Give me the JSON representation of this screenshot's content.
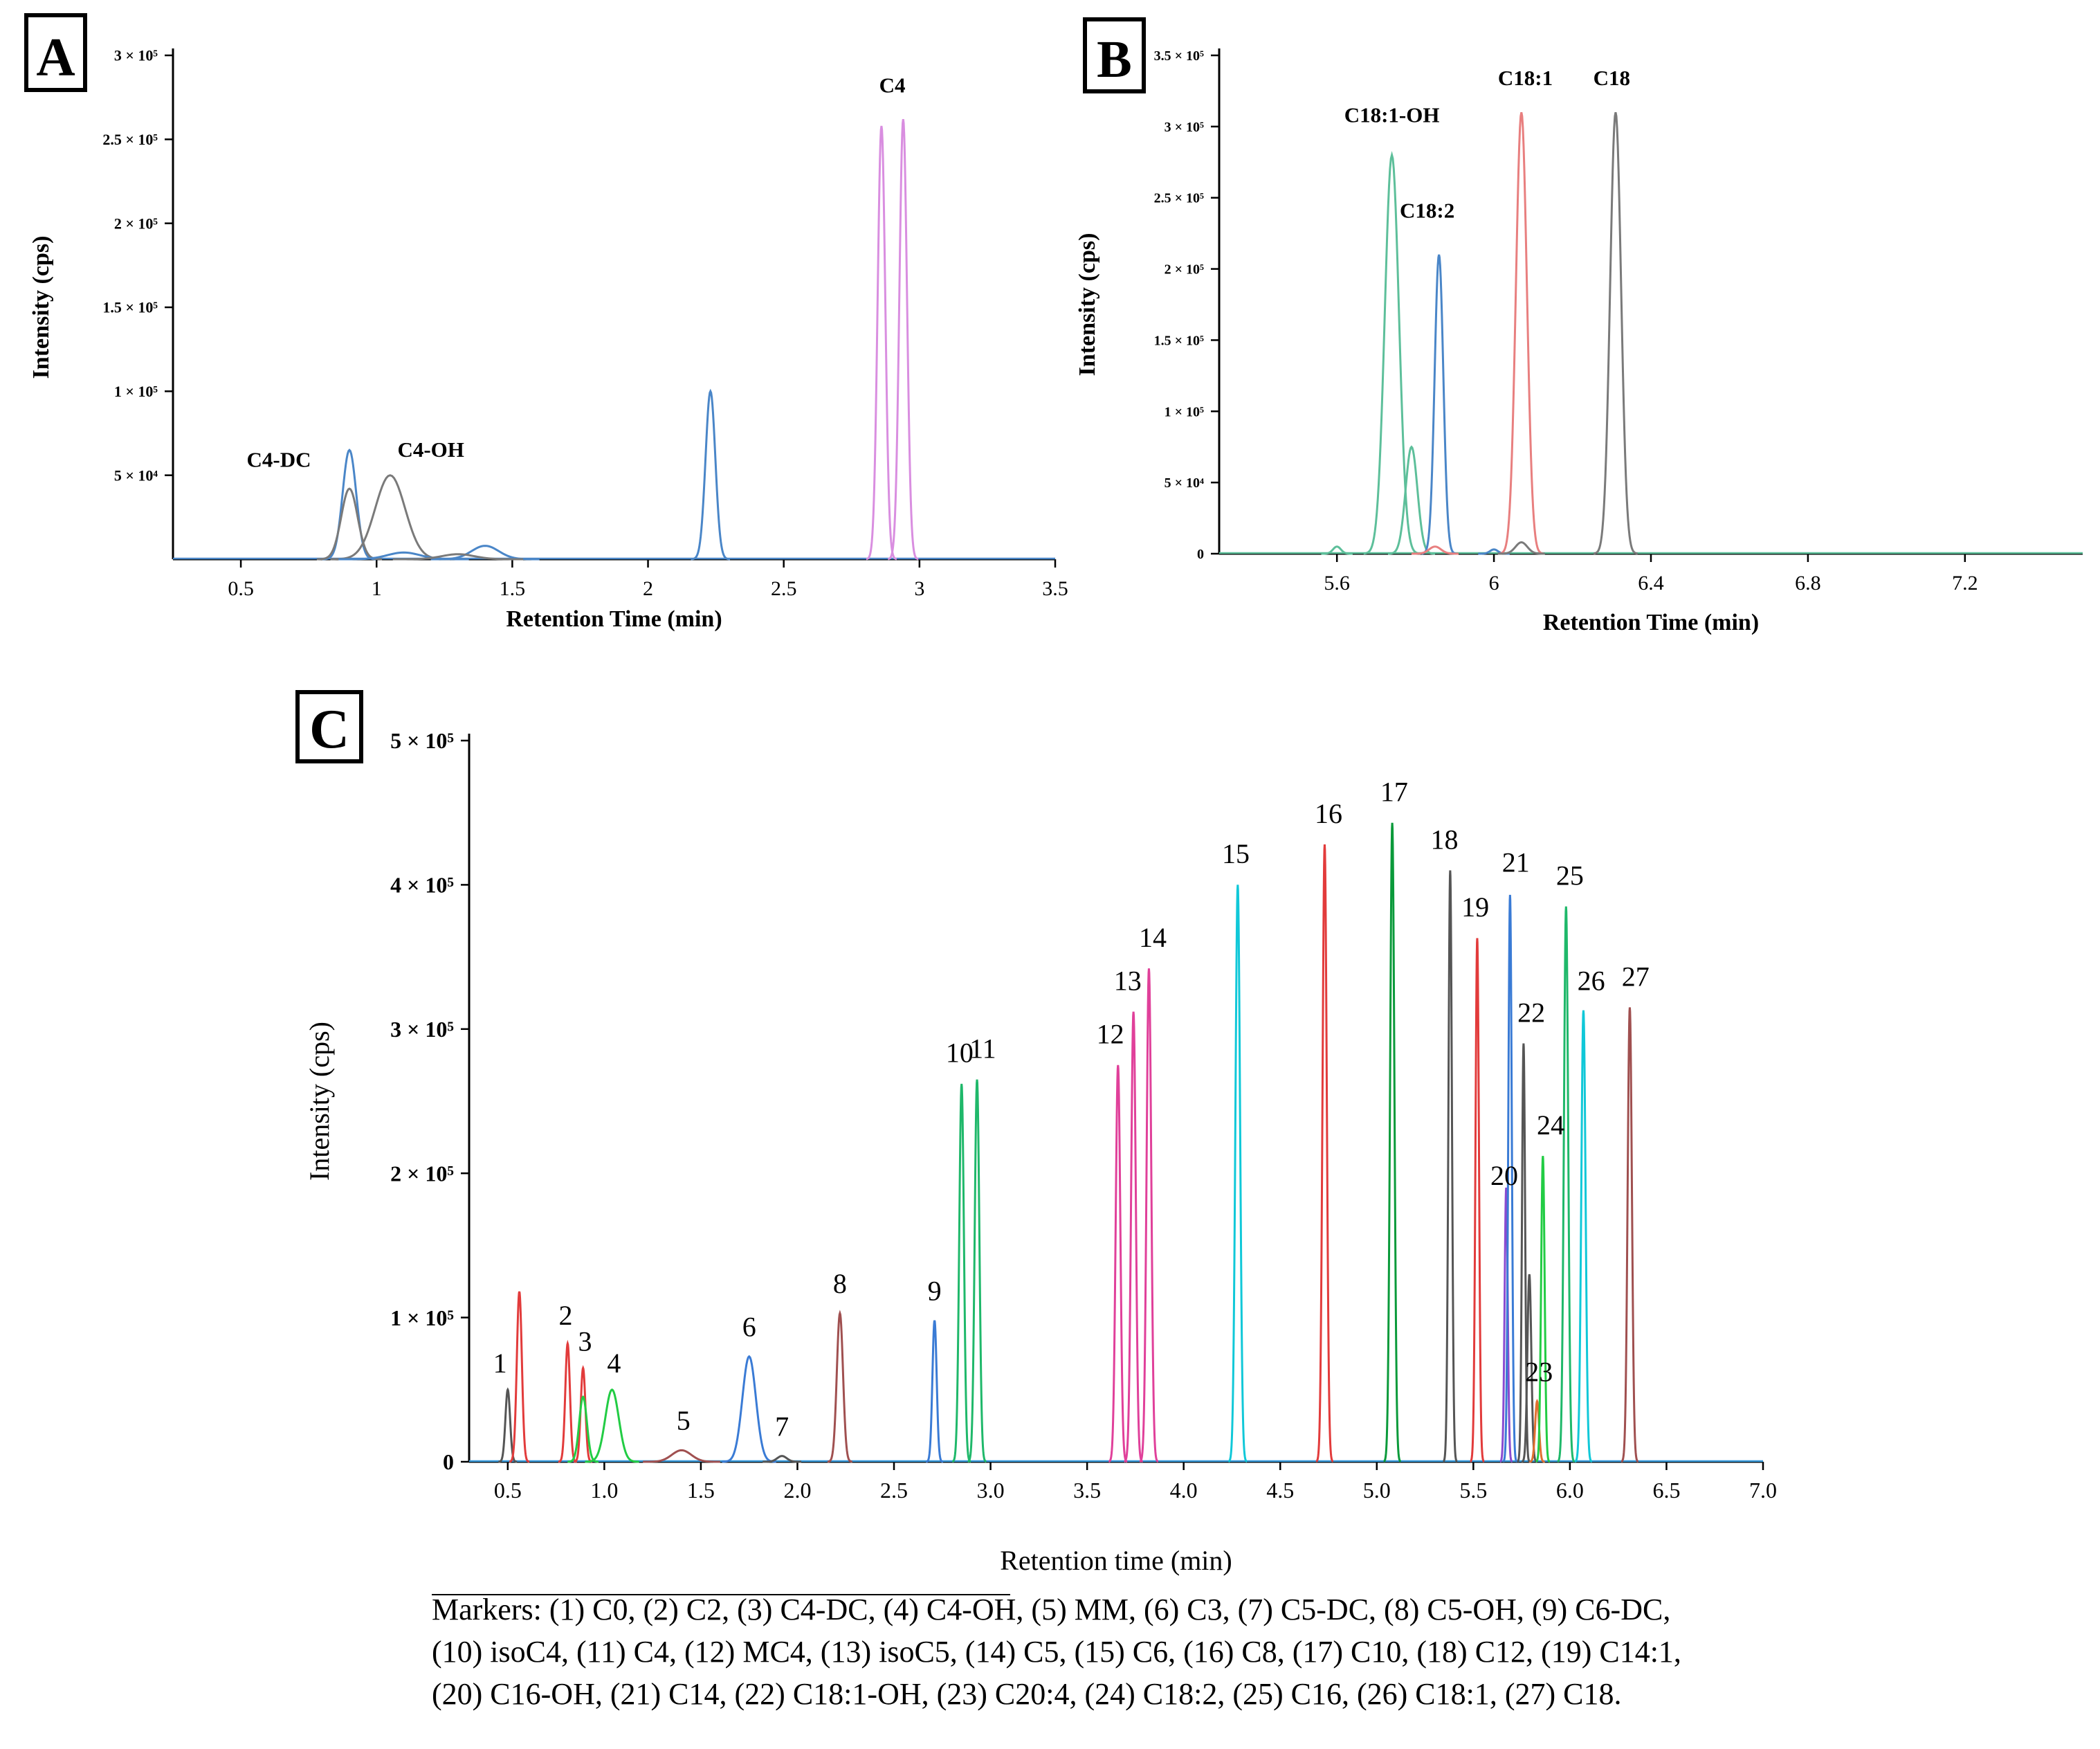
{
  "chart_data": [
    {
      "id": "A",
      "panel_label": "A",
      "type": "line",
      "title": "",
      "xlabel": "Retention Time (min)",
      "ylabel": "Intensity (cps)",
      "xlim": [
        0.25,
        3.5
      ],
      "ylim": [
        0,
        300000
      ],
      "xticks": [
        0.5,
        1,
        1.5,
        2,
        2.5,
        3,
        3.5
      ],
      "xtick_labels": [
        "0.5",
        "1",
        "1.5",
        "2",
        "2.5",
        "3",
        "3.5"
      ],
      "yticks": [
        50000,
        100000,
        150000,
        200000,
        250000,
        300000
      ],
      "ytick_labels": [
        "5 × 10⁴",
        "1 × 10⁵",
        "1.5 × 10⁵",
        "2 × 10⁵",
        "2.5 × 10⁵",
        "3 × 10⁵"
      ],
      "baseline": 0,
      "peaks": [
        {
          "color": "#4a86c8",
          "x": 0.9,
          "y": 65000,
          "w": 0.025
        },
        {
          "color": "#7a7a7a",
          "x": 0.9,
          "y": 42000,
          "w": 0.03
        },
        {
          "color": "#7a7a7a",
          "x": 1.05,
          "y": 50000,
          "w": 0.055
        },
        {
          "color": "#4a86c8",
          "x": 1.1,
          "y": 4000,
          "w": 0.06
        },
        {
          "color": "#4a86c8",
          "x": 1.4,
          "y": 8000,
          "w": 0.05
        },
        {
          "color": "#7a7a7a",
          "x": 1.3,
          "y": 3000,
          "w": 0.06
        },
        {
          "color": "#4a86c8",
          "x": 2.23,
          "y": 100000,
          "w": 0.018
        },
        {
          "color": "#d98ee0",
          "x": 2.86,
          "y": 258000,
          "w": 0.014
        },
        {
          "color": "#d98ee0",
          "x": 2.94,
          "y": 262000,
          "w": 0.014
        }
      ],
      "annotations": [
        {
          "text": "C4-DC",
          "x": 0.64,
          "y": 55000
        },
        {
          "text": "C4-OH",
          "x": 1.2,
          "y": 61000
        },
        {
          "text": "C4",
          "x": 2.9,
          "y": 278000
        }
      ]
    },
    {
      "id": "B",
      "panel_label": "B",
      "type": "line",
      "title": "",
      "xlabel": "Retention Time (min)",
      "ylabel": "Intensity (cps)",
      "xlim": [
        5.3,
        7.5
      ],
      "ylim": [
        0,
        350000
      ],
      "xticks": [
        5.6,
        6,
        6.4,
        6.8,
        7.2
      ],
      "xtick_labels": [
        "5.6",
        "6",
        "6.4",
        "6.8",
        "7.2"
      ],
      "yticks": [
        0,
        50000,
        100000,
        150000,
        200000,
        250000,
        300000,
        350000
      ],
      "ytick_labels": [
        "0",
        "5 × 10⁴",
        "1 × 10⁵",
        "1.5 × 10⁵",
        "2 × 10⁵",
        "2.5 × 10⁵",
        "3 × 10⁵",
        "3.5 × 10⁵"
      ],
      "baseline": 0,
      "peaks": [
        {
          "color": "#5dbf9a",
          "x": 5.74,
          "y": 280000,
          "w": 0.018
        },
        {
          "color": "#5dbf9a",
          "x": 5.79,
          "y": 75000,
          "w": 0.015
        },
        {
          "color": "#5dbf9a",
          "x": 5.6,
          "y": 5000,
          "w": 0.01
        },
        {
          "color": "#4a86c8",
          "x": 5.86,
          "y": 210000,
          "w": 0.011
        },
        {
          "color": "#4a86c8",
          "x": 6.0,
          "y": 3000,
          "w": 0.01
        },
        {
          "color": "#e87f7f",
          "x": 5.85,
          "y": 5000,
          "w": 0.015
        },
        {
          "color": "#e87f7f",
          "x": 6.07,
          "y": 310000,
          "w": 0.014
        },
        {
          "color": "#7a7a7a",
          "x": 6.07,
          "y": 8000,
          "w": 0.015
        },
        {
          "color": "#7a7a7a",
          "x": 6.31,
          "y": 310000,
          "w": 0.014
        }
      ],
      "annotations": [
        {
          "text": "C18:1-OH",
          "x": 5.74,
          "y": 303000
        },
        {
          "text": "C18:2",
          "x": 5.83,
          "y": 236000
        },
        {
          "text": "C18:1",
          "x": 6.08,
          "y": 329000
        },
        {
          "text": "C18",
          "x": 6.3,
          "y": 329000
        }
      ]
    },
    {
      "id": "C",
      "panel_label": "C",
      "type": "line",
      "title": "",
      "xlabel": "Retention time (min)",
      "ylabel": "Intensity (cps)",
      "xlim": [
        0.3,
        7.0
      ],
      "ylim": [
        0,
        500000
      ],
      "xticks": [
        0.5,
        1.0,
        1.5,
        2.0,
        2.5,
        3.0,
        3.5,
        4.0,
        4.5,
        5.0,
        5.5,
        6.0,
        6.5,
        7.0
      ],
      "xtick_labels": [
        "0.5",
        "1.0",
        "1.5",
        "2.0",
        "2.5",
        "3.0",
        "3.5",
        "4.0",
        "4.5",
        "5.0",
        "5.5",
        "6.0",
        "6.5",
        "7.0"
      ],
      "yticks": [
        0,
        100000,
        200000,
        300000,
        400000,
        500000
      ],
      "ytick_labels": [
        "0",
        "1 × 10⁵",
        "2 × 10⁵",
        "3 × 10⁵",
        "4 × 10⁵",
        "5 × 10⁵"
      ],
      "baseline": 0,
      "peaks": [
        {
          "color": "#555555",
          "x": 0.5,
          "y": 50000,
          "w": 0.012
        },
        {
          "color": "#e23b3b",
          "x": 0.56,
          "y": 118000,
          "w": 0.013
        },
        {
          "color": "#e23b3b",
          "x": 0.81,
          "y": 82000,
          "w": 0.012
        },
        {
          "color": "#e23b3b",
          "x": 0.89,
          "y": 65000,
          "w": 0.012
        },
        {
          "color": "#22cc44",
          "x": 0.89,
          "y": 45000,
          "w": 0.02
        },
        {
          "color": "#22cc44",
          "x": 1.04,
          "y": 50000,
          "w": 0.035
        },
        {
          "color": "#a05050",
          "x": 1.4,
          "y": 8000,
          "w": 0.05
        },
        {
          "color": "#3a7bd5",
          "x": 1.75,
          "y": 73000,
          "w": 0.035
        },
        {
          "color": "#555555",
          "x": 1.92,
          "y": 4000,
          "w": 0.025
        },
        {
          "color": "#a05050",
          "x": 2.22,
          "y": 103000,
          "w": 0.016
        },
        {
          "color": "#3a7bd5",
          "x": 2.71,
          "y": 98000,
          "w": 0.011
        },
        {
          "color": "#1fb86a",
          "x": 2.85,
          "y": 262000,
          "w": 0.012
        },
        {
          "color": "#1fb86a",
          "x": 2.93,
          "y": 265000,
          "w": 0.012
        },
        {
          "color": "#e0409a",
          "x": 3.66,
          "y": 275000,
          "w": 0.012
        },
        {
          "color": "#e0409a",
          "x": 3.74,
          "y": 312000,
          "w": 0.012
        },
        {
          "color": "#e0409a",
          "x": 3.82,
          "y": 342000,
          "w": 0.012
        },
        {
          "color": "#10c8d8",
          "x": 4.28,
          "y": 400000,
          "w": 0.012
        },
        {
          "color": "#e23b3b",
          "x": 4.73,
          "y": 428000,
          "w": 0.011
        },
        {
          "color": "#0a9a3a",
          "x": 5.08,
          "y": 443000,
          "w": 0.011
        },
        {
          "color": "#555555",
          "x": 5.38,
          "y": 410000,
          "w": 0.009
        },
        {
          "color": "#e23b3b",
          "x": 5.52,
          "y": 363000,
          "w": 0.009
        },
        {
          "color": "#8a4bd0",
          "x": 5.67,
          "y": 190000,
          "w": 0.008
        },
        {
          "color": "#3a7bd5",
          "x": 5.69,
          "y": 393000,
          "w": 0.009
        },
        {
          "color": "#555555",
          "x": 5.76,
          "y": 290000,
          "w": 0.008
        },
        {
          "color": "#555555",
          "x": 5.79,
          "y": 130000,
          "w": 0.01
        },
        {
          "color": "#e07030",
          "x": 5.83,
          "y": 42000,
          "w": 0.01
        },
        {
          "color": "#22cc44",
          "x": 5.86,
          "y": 212000,
          "w": 0.009
        },
        {
          "color": "#1fb86a",
          "x": 5.98,
          "y": 385000,
          "w": 0.011
        },
        {
          "color": "#10c8d8",
          "x": 6.07,
          "y": 313000,
          "w": 0.011
        },
        {
          "color": "#a05050",
          "x": 6.31,
          "y": 315000,
          "w": 0.011
        }
      ],
      "annotations": [
        {
          "text": "1",
          "x": 0.46,
          "y": 62000
        },
        {
          "text": "2",
          "x": 0.8,
          "y": 95000
        },
        {
          "text": "3",
          "x": 0.9,
          "y": 77000
        },
        {
          "text": "4",
          "x": 1.05,
          "y": 62000
        },
        {
          "text": "5",
          "x": 1.41,
          "y": 22000
        },
        {
          "text": "6",
          "x": 1.75,
          "y": 87000
        },
        {
          "text": "7",
          "x": 1.92,
          "y": 18000
        },
        {
          "text": "8",
          "x": 2.22,
          "y": 117000
        },
        {
          "text": "9",
          "x": 2.71,
          "y": 112000
        },
        {
          "text": "10",
          "x": 2.84,
          "y": 277000
        },
        {
          "text": "11",
          "x": 2.96,
          "y": 280000
        },
        {
          "text": "12",
          "x": 3.62,
          "y": 290000
        },
        {
          "text": "13",
          "x": 3.71,
          "y": 327000
        },
        {
          "text": "14",
          "x": 3.84,
          "y": 357000
        },
        {
          "text": "15",
          "x": 4.27,
          "y": 415000
        },
        {
          "text": "16",
          "x": 4.75,
          "y": 443000
        },
        {
          "text": "17",
          "x": 5.09,
          "y": 458000
        },
        {
          "text": "18",
          "x": 5.35,
          "y": 425000
        },
        {
          "text": "19",
          "x": 5.51,
          "y": 378000
        },
        {
          "text": "20",
          "x": 5.66,
          "y": 192000
        },
        {
          "text": "21",
          "x": 5.72,
          "y": 409000
        },
        {
          "text": "22",
          "x": 5.8,
          "y": 305000
        },
        {
          "text": "23",
          "x": 5.84,
          "y": 56000
        },
        {
          "text": "24",
          "x": 5.9,
          "y": 227000
        },
        {
          "text": "25",
          "x": 6.0,
          "y": 400000
        },
        {
          "text": "26",
          "x": 6.11,
          "y": 327000
        },
        {
          "text": "27",
          "x": 6.34,
          "y": 330000
        }
      ]
    }
  ],
  "legend": {
    "lines": [
      "Markers: (1) C0, (2) C2, (3) C4-DC, (4) C4-OH, (5) MM, (6) C3, (7) C5-DC, (8) C5-OH, (9) C6-DC,",
      "(10) isoC4, (11) C4, (12) MC4, (13) isoC5, (14) C5, (15) C6, (16) C8, (17) C10, (18) C12, (19) C14:1,",
      "(20) C16-OH, (21) C14, (22) C18:1-OH, (23) C20:4, (24) C18:2, (25) C16, (26) C18:1, (27) C18."
    ]
  }
}
